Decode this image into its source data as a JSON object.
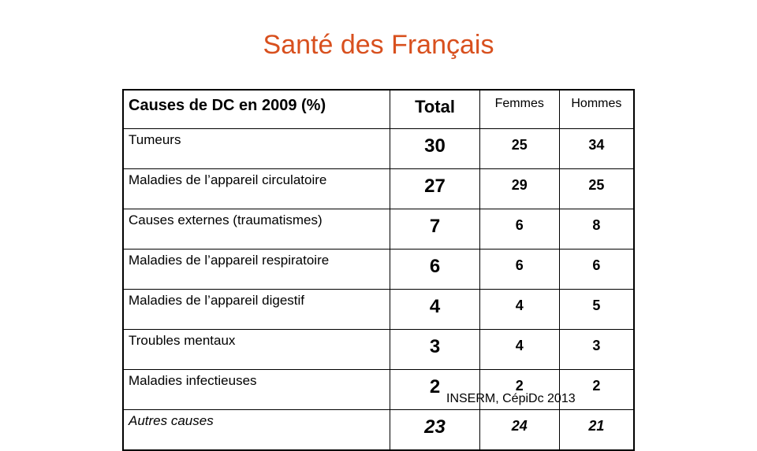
{
  "title": "Santé des Français",
  "table": {
    "headers": [
      "Causes de DC en 2009 (%)",
      "Total",
      "Femmes",
      "Hommes"
    ],
    "rows": [
      {
        "cause": "Tumeurs",
        "total": "30",
        "femmes": "25",
        "hommes": "34",
        "italic": false
      },
      {
        "cause": "Maladies de l’appareil circulatoire",
        "total": "27",
        "femmes": "29",
        "hommes": "25",
        "italic": false
      },
      {
        "cause": "Causes externes (traumatismes)",
        "total": "7",
        "femmes": "6",
        "hommes": "8",
        "italic": false
      },
      {
        "cause": "Maladies de l’appareil respiratoire",
        "total": "6",
        "femmes": "6",
        "hommes": "6",
        "italic": false
      },
      {
        "cause": "Maladies de l’appareil digestif",
        "total": "4",
        "femmes": "4",
        "hommes": "5",
        "italic": false
      },
      {
        "cause": "Troubles mentaux",
        "total": "3",
        "femmes": "4",
        "hommes": "3",
        "italic": false
      },
      {
        "cause": "Maladies infectieuses",
        "total": "2",
        "femmes": "2",
        "hommes": "2",
        "italic": false
      },
      {
        "cause": "Autres causes",
        "total": "23",
        "femmes": "24",
        "hommes": "21",
        "italic": true
      }
    ]
  },
  "source": "INSERM, CépiDc 2013",
  "colors": {
    "title": "#d8501e"
  }
}
